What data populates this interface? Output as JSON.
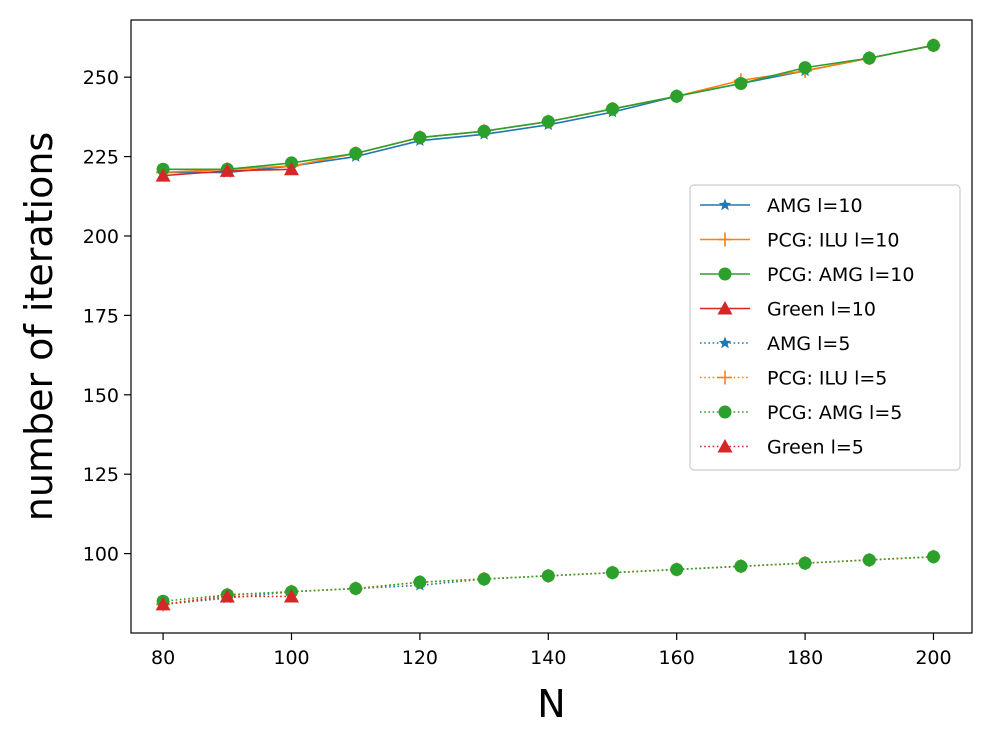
{
  "chart_data": {
    "type": "line",
    "title": "",
    "xlabel": "N",
    "ylabel": "number of iterations",
    "xlim": [
      75,
      206
    ],
    "ylim": [
      75,
      268
    ],
    "xticks": [
      80,
      100,
      120,
      140,
      160,
      180,
      200
    ],
    "yticks": [
      100,
      125,
      150,
      175,
      200,
      225,
      250
    ],
    "legend_position": "center-right",
    "series": [
      {
        "name": "AMG l=10",
        "color": "#1f77b4",
        "style": "solid",
        "marker": "star",
        "x": [
          80,
          90,
          100,
          110,
          120,
          130,
          140,
          150,
          160,
          170,
          180,
          190,
          200
        ],
        "y": [
          220,
          220,
          222,
          225,
          230,
          232,
          235,
          239,
          244,
          248,
          252,
          256,
          260
        ]
      },
      {
        "name": "PCG: ILU l=10",
        "color": "#ff7f0e",
        "style": "solid",
        "marker": "plus",
        "x": [
          80,
          90,
          100,
          110,
          120,
          130,
          140,
          150,
          160,
          170,
          180,
          190,
          200
        ],
        "y": [
          220,
          221,
          222,
          226,
          231,
          233,
          236,
          240,
          244,
          249,
          252,
          256,
          260
        ]
      },
      {
        "name": "PCG: AMG l=10",
        "color": "#2ca02c",
        "style": "solid",
        "marker": "circle",
        "x": [
          80,
          90,
          100,
          110,
          120,
          130,
          140,
          150,
          160,
          170,
          180,
          190,
          200
        ],
        "y": [
          221,
          221,
          223,
          226,
          231,
          233,
          236,
          240,
          244,
          248,
          253,
          256,
          260
        ]
      },
      {
        "name": "Green l=10",
        "color": "#d62728",
        "style": "solid",
        "marker": "triangle",
        "x": [
          80,
          90,
          100
        ],
        "y": [
          219,
          220.5,
          221
        ]
      },
      {
        "name": "AMG l=5",
        "color": "#1f77b4",
        "style": "dotted",
        "marker": "star",
        "x": [
          80,
          90,
          100,
          110,
          120,
          130,
          140,
          150,
          160,
          170,
          180,
          190,
          200
        ],
        "y": [
          84,
          86,
          88,
          89,
          90,
          92,
          93,
          94,
          95,
          96,
          97,
          98,
          99
        ]
      },
      {
        "name": "PCG: ILU l=5",
        "color": "#ff7f0e",
        "style": "dotted",
        "marker": "plus",
        "x": [
          80,
          90,
          100,
          110,
          120,
          130,
          140,
          150,
          160,
          170,
          180,
          190,
          200
        ],
        "y": [
          84,
          87,
          88,
          89,
          91,
          92,
          93,
          94,
          95,
          96,
          97,
          98,
          99
        ]
      },
      {
        "name": "PCG: AMG l=5",
        "color": "#2ca02c",
        "style": "dotted",
        "marker": "circle",
        "x": [
          80,
          90,
          100,
          110,
          120,
          130,
          140,
          150,
          160,
          170,
          180,
          190,
          200
        ],
        "y": [
          85,
          87,
          88,
          89,
          91,
          92,
          93,
          94,
          95,
          96,
          97,
          98,
          99
        ]
      },
      {
        "name": "Green l=5",
        "color": "#d62728",
        "style": "dotted",
        "marker": "triangle",
        "x": [
          80,
          90,
          100
        ],
        "y": [
          84,
          86.5,
          86.5
        ]
      }
    ]
  }
}
